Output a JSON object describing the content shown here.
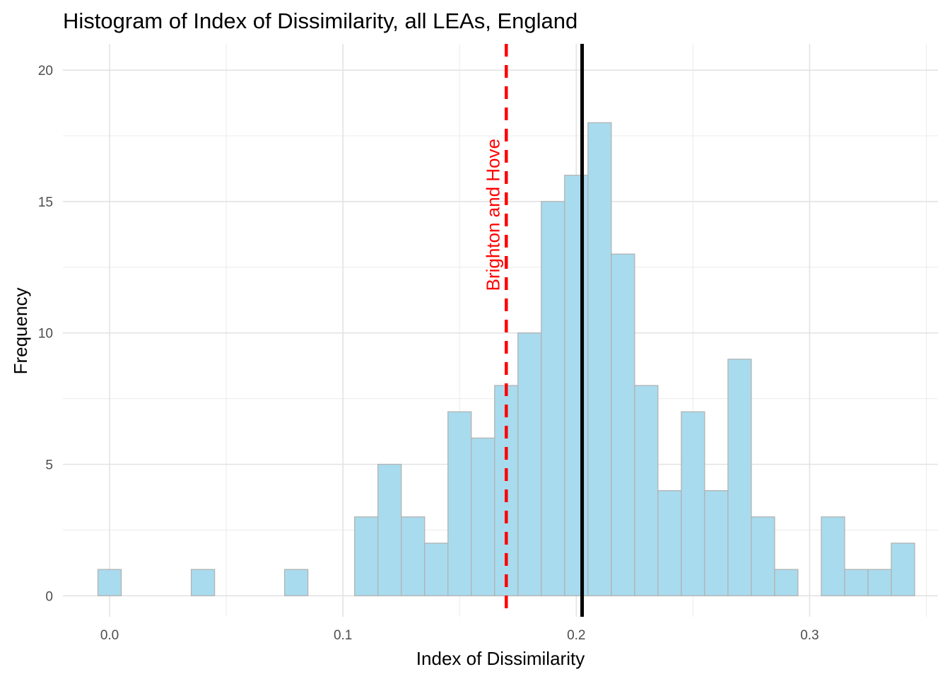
{
  "chart_data": {
    "type": "bar",
    "title": "Histogram of Index of Dissimilarity, all LEAs, England",
    "xlabel": "Index of Dissimilarity",
    "ylabel": "Frequency",
    "xlim": [
      -0.02,
      0.355
    ],
    "ylim": [
      -0.8,
      21
    ],
    "x_ticks": [
      {
        "value": 0.0,
        "label": "0.0"
      },
      {
        "value": 0.1,
        "label": "0.1"
      },
      {
        "value": 0.2,
        "label": "0.2"
      },
      {
        "value": 0.3,
        "label": "0.3"
      }
    ],
    "y_ticks": [
      {
        "value": 0,
        "label": "0"
      },
      {
        "value": 5,
        "label": "5"
      },
      {
        "value": 10,
        "label": "10"
      },
      {
        "value": 15,
        "label": "15"
      },
      {
        "value": 20,
        "label": "20"
      }
    ],
    "grid": true,
    "bin_width": 0.01,
    "bin_centers": [
      0.0,
      0.01,
      0.02,
      0.03,
      0.04,
      0.05,
      0.06,
      0.07,
      0.08,
      0.09,
      0.1,
      0.11,
      0.12,
      0.13,
      0.14,
      0.15,
      0.16,
      0.17,
      0.18,
      0.19,
      0.2,
      0.21,
      0.22,
      0.23,
      0.24,
      0.25,
      0.26,
      0.27,
      0.28,
      0.29,
      0.3,
      0.31,
      0.32,
      0.33,
      0.34
    ],
    "counts": [
      1,
      0,
      0,
      0,
      1,
      0,
      0,
      0,
      1,
      0,
      0,
      3,
      5,
      3,
      2,
      7,
      6,
      8,
      10,
      15,
      16,
      18,
      13,
      8,
      4,
      7,
      4,
      9,
      3,
      1,
      0,
      3,
      1,
      1,
      2
    ],
    "bar_fill": "#a8dbee",
    "bar_stroke": "#b3b3b3",
    "reference_lines": [
      {
        "x": 0.2025,
        "style": "solid",
        "color": "#000000"
      },
      {
        "x": 0.17,
        "style": "dashed",
        "color": "#ff0000",
        "label": "Brighton and Hove",
        "label_y": 12
      }
    ]
  }
}
